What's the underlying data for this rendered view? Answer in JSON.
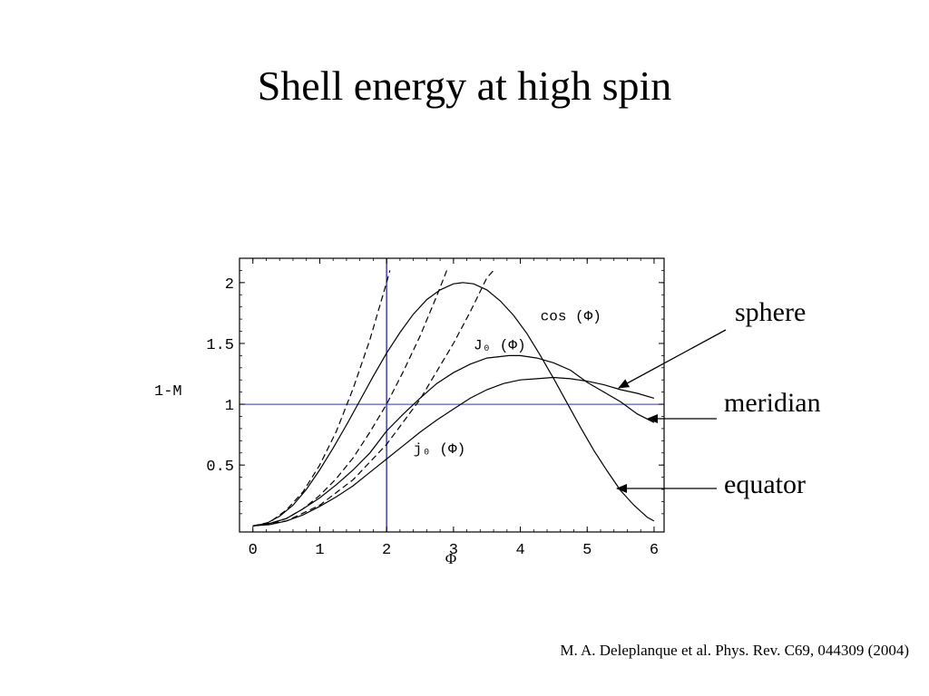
{
  "slide": {
    "title": "Shell energy at high spin",
    "citation": "M. A. Deleplanque et al. Phys. Rev. C69, 044309 (2004)",
    "annotations": {
      "sphere": "sphere",
      "meridian": "meridian",
      "equator": "equator"
    }
  },
  "chart_data": {
    "type": "line",
    "title": "",
    "xlabel": "Φ",
    "ylabel": "1-M",
    "xlim": [
      -0.2,
      6.15
    ],
    "ylim": [
      -0.05,
      2.2
    ],
    "xticks": [
      0,
      1,
      2,
      3,
      4,
      5,
      6
    ],
    "xtick_labels": [
      "0",
      "1",
      "2",
      "3",
      "4",
      "5",
      "6"
    ],
    "yticks": [
      0.5,
      1,
      1.5,
      2
    ],
    "ytick_labels": [
      "0.5",
      "1",
      "1.5",
      "2"
    ],
    "grid": false,
    "reference_lines": {
      "horizontal_y": 1,
      "vertical_x": 2
    },
    "colors": {
      "curve": "#000000",
      "reference": "#3333bb",
      "axes": "#000000"
    },
    "curve_labels": [
      {
        "text": "cos (Φ)",
        "x": 4.3,
        "y": 1.69
      },
      {
        "text": "J₀ (Φ)",
        "x": 3.3,
        "y": 1.45
      },
      {
        "text": "j₀ (Φ)",
        "x": 2.4,
        "y": 0.6
      }
    ],
    "series": [
      {
        "key": "cos",
        "label": "cos (Φ)",
        "style": "solid",
        "x": [
          0,
          0.2,
          0.4,
          0.6,
          0.8,
          1.0,
          1.2,
          1.4,
          1.6,
          1.8,
          2.0,
          2.2,
          2.4,
          2.6,
          2.8,
          3.0,
          3.14,
          3.3,
          3.5,
          3.7,
          3.9,
          4.1,
          4.3,
          4.5,
          4.7,
          4.9,
          5.1,
          5.3,
          5.5,
          5.7,
          5.9,
          6.0
        ],
        "y": [
          0,
          0.02,
          0.08,
          0.17,
          0.3,
          0.46,
          0.64,
          0.83,
          1.03,
          1.23,
          1.42,
          1.59,
          1.74,
          1.86,
          1.94,
          1.99,
          2.0,
          1.99,
          1.94,
          1.85,
          1.73,
          1.58,
          1.4,
          1.21,
          1.01,
          0.81,
          0.62,
          0.45,
          0.29,
          0.17,
          0.07,
          0.04
        ]
      },
      {
        "key": "J0",
        "label": "J₀ (Φ)",
        "style": "solid",
        "x": [
          0,
          0.25,
          0.5,
          0.75,
          1.0,
          1.25,
          1.5,
          1.75,
          2.0,
          2.25,
          2.5,
          2.75,
          3.0,
          3.25,
          3.5,
          3.83,
          4.0,
          4.25,
          4.5,
          4.75,
          5.0,
          5.25,
          5.5,
          5.75,
          6.0
        ],
        "y": [
          0,
          0.02,
          0.06,
          0.14,
          0.23,
          0.34,
          0.46,
          0.6,
          0.78,
          0.92,
          1.05,
          1.17,
          1.26,
          1.33,
          1.38,
          1.4,
          1.4,
          1.38,
          1.34,
          1.28,
          1.18,
          1.1,
          1.02,
          0.92,
          0.85
        ]
      },
      {
        "key": "j0",
        "label": "j₀ (Φ)",
        "style": "solid",
        "x": [
          0,
          0.25,
          0.5,
          0.75,
          1.0,
          1.25,
          1.5,
          1.75,
          2.0,
          2.25,
          2.5,
          2.75,
          3.0,
          3.25,
          3.5,
          3.75,
          4.0,
          4.25,
          4.49,
          4.75,
          5.0,
          5.25,
          5.5,
          5.75,
          6.0
        ],
        "y": [
          0,
          0.01,
          0.04,
          0.09,
          0.16,
          0.24,
          0.33,
          0.44,
          0.55,
          0.66,
          0.77,
          0.87,
          0.96,
          1.05,
          1.12,
          1.17,
          1.2,
          1.21,
          1.22,
          1.21,
          1.19,
          1.16,
          1.12,
          1.09,
          1.05
        ]
      },
      {
        "key": "cos_approx",
        "label": "",
        "style": "dashed",
        "x": [
          0,
          0.25,
          0.5,
          0.75,
          1.0,
          1.25,
          1.5,
          1.75,
          2.0,
          2.05
        ],
        "y": [
          0,
          0.03,
          0.13,
          0.28,
          0.5,
          0.78,
          1.13,
          1.53,
          2.0,
          2.1
        ]
      },
      {
        "key": "J0_approx",
        "label": "",
        "style": "dashed",
        "x": [
          0,
          0.25,
          0.5,
          0.75,
          1.0,
          1.25,
          1.5,
          1.75,
          2.0,
          2.25,
          2.5,
          2.75,
          2.9
        ],
        "y": [
          0,
          0.02,
          0.06,
          0.14,
          0.25,
          0.39,
          0.56,
          0.77,
          1.0,
          1.27,
          1.56,
          1.89,
          2.1
        ]
      },
      {
        "key": "j0_approx",
        "label": "",
        "style": "dashed",
        "x": [
          0,
          0.5,
          1.0,
          1.5,
          2.0,
          2.5,
          3.0,
          3.25,
          3.5,
          3.6
        ],
        "y": [
          0,
          0.04,
          0.17,
          0.38,
          0.67,
          1.04,
          1.5,
          1.76,
          2.04,
          2.1
        ]
      }
    ]
  }
}
